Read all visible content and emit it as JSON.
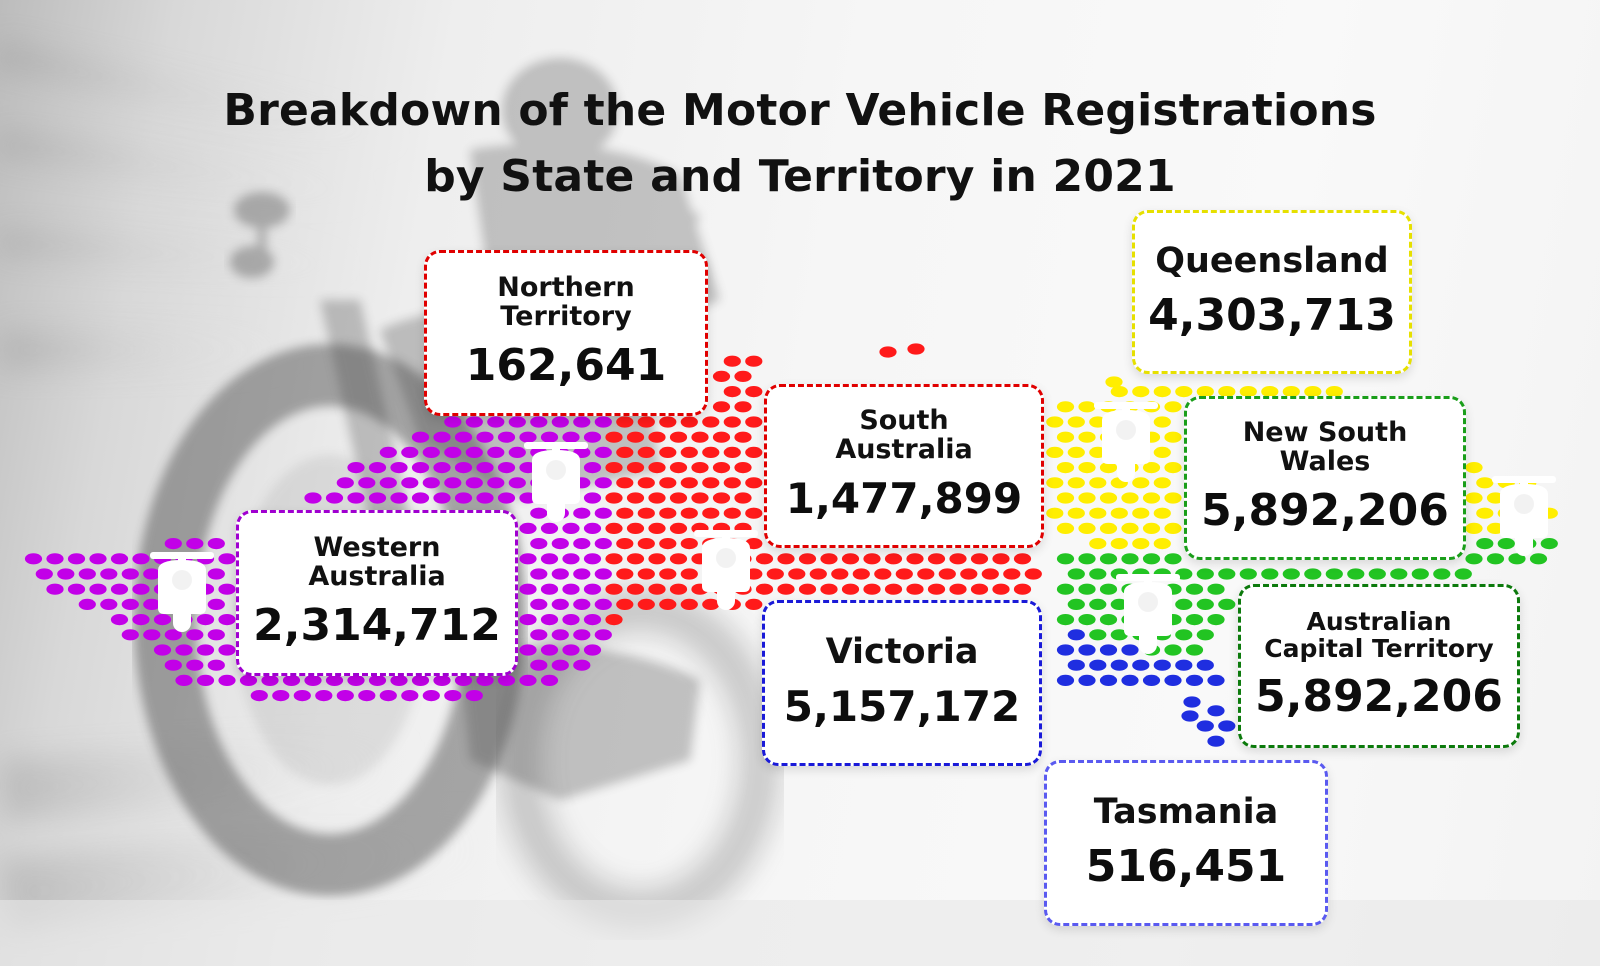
{
  "title": {
    "line1": "Breakdown of the Motor Vehicle Registrations",
    "line2": "by State and Territory in 2021"
  },
  "colors": {
    "western_australia": "#c200e8",
    "northern_territory": "#ff1a1a",
    "south_australia": "#ff1a1a",
    "queensland": "#ffee00",
    "new_south_wales": "#22c422",
    "australian_capital_territory": "#22c422",
    "victoria": "#1f2ee0",
    "tasmania": "#1f2ee0",
    "card_border_wa": "#a000d0",
    "card_border_nt": "#e00000",
    "card_border_sa": "#e00000",
    "card_border_qld": "#e6e000",
    "card_border_nsw": "#1a9e1a",
    "card_border_act": "#0c7a0c",
    "card_border_vic": "#1a1ad8",
    "card_border_tas": "#5a5af0"
  },
  "regions": {
    "northern_territory": {
      "name": "Northern Territory",
      "value": "162,641",
      "icon": "scooter-icon"
    },
    "queensland": {
      "name": "Queensland",
      "value": "4,303,713",
      "icon": "scooter-icon"
    },
    "south_australia": {
      "name": "South Australia",
      "value": "1,477,899",
      "icon": "scooter-icon"
    },
    "new_south_wales": {
      "name": "New South Wales",
      "value": "5,892,206",
      "icon": "scooter-icon"
    },
    "western_australia": {
      "name": "Western Australia",
      "value": "2,314,712",
      "icon": "scooter-icon"
    },
    "victoria": {
      "name": "Victoria",
      "value": "5,157,172",
      "icon": "scooter-icon"
    },
    "australian_capital_territory": {
      "name": "Australian Capital Territory",
      "value": "5,892,206",
      "icon": "scooter-icon"
    },
    "tasmania": {
      "name": "Tasmania",
      "value": "516,451",
      "icon": "scooter-icon"
    }
  }
}
